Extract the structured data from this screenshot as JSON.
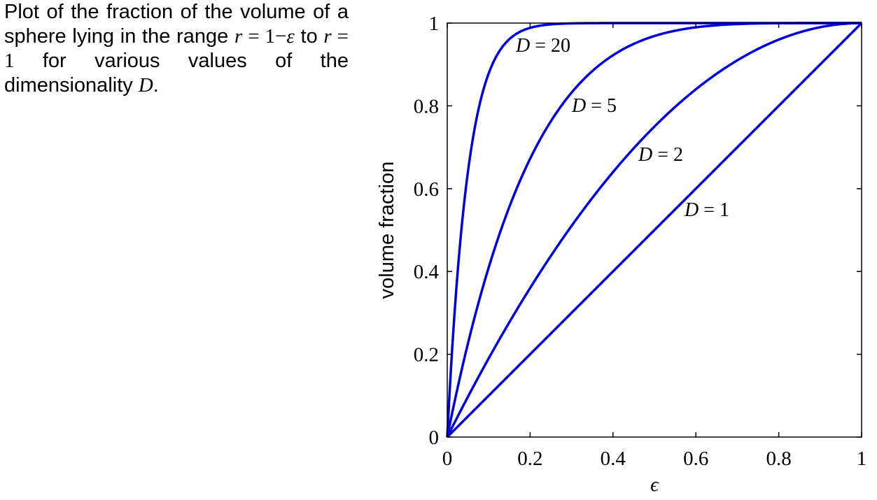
{
  "caption": {
    "t1": "Plot of the fraction of the volume of a sphere lying in the range ",
    "m1": "r",
    "t2": " = 1−",
    "m2": "ε",
    "t3": " to ",
    "m3": "r",
    "t4": " = 1",
    "t5": " for various values of the dimensionality ",
    "m4": "D",
    "t6": "."
  },
  "chart_data": {
    "type": "line",
    "xlabel": "ϵ",
    "ylabel": "volume fraction",
    "xlim": [
      0,
      1
    ],
    "ylim": [
      0,
      1
    ],
    "xticks": [
      "0",
      "0.2",
      "0.4",
      "0.6",
      "0.8",
      "1"
    ],
    "yticks": [
      "0",
      "0.2",
      "0.4",
      "0.6",
      "0.8",
      "1"
    ],
    "grid": false,
    "line_color": "#0000dd",
    "x": [
      0,
      0.02,
      0.05,
      0.1,
      0.15,
      0.2,
      0.3,
      0.4,
      0.5,
      0.6,
      0.7,
      0.8,
      0.9,
      1.0
    ],
    "series": [
      {
        "label": "D = 1",
        "label_var": "D",
        "label_rest": " = 1",
        "D": 1,
        "values": [
          0,
          0.02,
          0.05,
          0.1,
          0.15,
          0.2,
          0.3,
          0.4,
          0.5,
          0.6,
          0.7,
          0.8,
          0.9,
          1.0
        ]
      },
      {
        "label": "D = 2",
        "label_var": "D",
        "label_rest": " = 2",
        "D": 2,
        "values": [
          0,
          0.0396,
          0.0975,
          0.19,
          0.2775,
          0.36,
          0.51,
          0.64,
          0.75,
          0.84,
          0.91,
          0.96,
          0.99,
          1.0
        ]
      },
      {
        "label": "D = 5",
        "label_var": "D",
        "label_rest": " = 5",
        "D": 5,
        "values": [
          0,
          0.0961,
          0.2262,
          0.4095,
          0.5563,
          0.6723,
          0.8319,
          0.9222,
          0.9688,
          0.9898,
          0.9976,
          0.9997,
          1.0,
          1.0
        ]
      },
      {
        "label": "D = 20",
        "label_var": "D",
        "label_rest": " = 20",
        "D": 20,
        "values": [
          0,
          0.3324,
          0.6415,
          0.8784,
          0.9612,
          0.9885,
          0.9992,
          1.0,
          1.0,
          1.0,
          1.0,
          1.0,
          1.0,
          1.0
        ]
      }
    ]
  }
}
